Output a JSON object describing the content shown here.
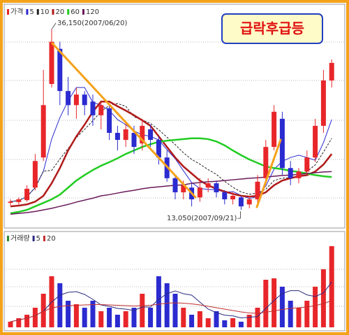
{
  "chart_data": [
    {
      "type": "candlestick",
      "title": "급락후급등",
      "price_label": "가격",
      "up_color": "#e8262a",
      "down_color": "#2b2bd0",
      "annotations": [
        "36,150(2007/06/20)",
        "13,050(2007/09/21)"
      ],
      "ylim": [
        11450,
        38550
      ],
      "open": [
        13950,
        14050,
        14300,
        15900,
        19750,
        29150,
        33650,
        28250,
        26450,
        27800,
        26900,
        25150,
        26050,
        22900,
        22000,
        22900,
        21550,
        23350,
        22000,
        19750,
        17100,
        15300,
        15900,
        14650,
        15900,
        16450,
        15300,
        14400,
        14650,
        13750,
        14400,
        17100,
        21100,
        24700,
        18400,
        17100,
        17950,
        19750,
        23800,
        29600
      ],
      "high": [
        14400,
        14650,
        16200,
        20200,
        30950,
        36150,
        34550,
        30050,
        28700,
        28250,
        27800,
        26900,
        26450,
        23800,
        24250,
        23800,
        24700,
        23950,
        22450,
        20650,
        17500,
        16800,
        16450,
        17100,
        17100,
        16800,
        15550,
        15300,
        14850,
        14850,
        17500,
        22000,
        26450,
        25600,
        19300,
        18400,
        20650,
        24700,
        30950,
        32300
      ],
      "low": [
        13600,
        13750,
        14100,
        15550,
        19300,
        28700,
        26450,
        25150,
        24700,
        25150,
        23800,
        23350,
        22000,
        20650,
        21100,
        20200,
        20650,
        21100,
        18850,
        16650,
        14400,
        14400,
        13500,
        14100,
        15300,
        14650,
        13750,
        13750,
        13050,
        13250,
        13950,
        16450,
        20650,
        17500,
        16200,
        16450,
        17500,
        19150,
        22900,
        28700
      ],
      "close": [
        14100,
        14400,
        15750,
        19300,
        26450,
        34550,
        28250,
        26450,
        27800,
        26450,
        25150,
        26450,
        22900,
        22000,
        23350,
        21100,
        23800,
        22000,
        19750,
        17100,
        15300,
        16200,
        14400,
        15900,
        16450,
        15300,
        14400,
        14850,
        13500,
        14400,
        16650,
        21100,
        25600,
        18400,
        17100,
        17950,
        19750,
        23800,
        29600,
        31850
      ],
      "series": [
        {
          "name": "5",
          "color": "#2b2bd0",
          "width": 1,
          "dashed": false,
          "values": [
            14100,
            14250,
            14750,
            15900,
            18000,
            22100,
            24850,
            27000,
            28700,
            28700,
            26800,
            26450,
            25750,
            24600,
            23950,
            23150,
            22650,
            22450,
            22000,
            20750,
            19600,
            18050,
            16550,
            15800,
            15650,
            15650,
            15300,
            15400,
            14900,
            14500,
            14750,
            16100,
            18250,
            19250,
            19750,
            20050,
            19750,
            19400,
            21650,
            24600
          ]
        },
        {
          "name": "10",
          "color": "#222222",
          "width": 1,
          "dashed": true,
          "values": [
            14100,
            14250,
            14750,
            15900,
            18000,
            18100,
            19550,
            20900,
            22300,
            23350,
            24450,
            25650,
            26400,
            26650,
            26300,
            24950,
            24550,
            24100,
            23300,
            22350,
            21400,
            20350,
            19500,
            18900,
            18200,
            17600,
            16700,
            15950,
            15350,
            15050,
            15200,
            15700,
            16800,
            17100,
            17150,
            17400,
            17950,
            18800,
            20450,
            22200
          ]
        },
        {
          "name": "20",
          "color": "#b01a1a",
          "width": 2.5,
          "dashed": false,
          "values": [
            13500,
            13600,
            13750,
            14100,
            14850,
            16450,
            18400,
            20650,
            22450,
            23950,
            25600,
            26900,
            26900,
            26300,
            25750,
            25150,
            24500,
            23800,
            22450,
            21100,
            19750,
            18600,
            17700,
            16800,
            16200,
            15750,
            15400,
            15100,
            14850,
            14750,
            14850,
            15300,
            16200,
            16800,
            17100,
            17350,
            17500,
            17950,
            18850,
            20200
          ]
        },
        {
          "name": "60",
          "color": "#22cc22",
          "width": 2.5,
          "dashed": false,
          "values": [
            12600,
            12800,
            13050,
            13500,
            13950,
            14400,
            15000,
            15900,
            16800,
            17500,
            18150,
            18700,
            19150,
            19650,
            20200,
            20650,
            21100,
            21450,
            21750,
            21900,
            22000,
            22100,
            22200,
            22200,
            22100,
            21800,
            21300,
            20650,
            20050,
            19500,
            19050,
            18600,
            18400,
            18250,
            18050,
            17900,
            17700,
            17500,
            17350,
            17250
          ]
        },
        {
          "name": "120",
          "color": "#6a1a5a",
          "width": 1.5,
          "dashed": false,
          "values": [
            12500,
            12600,
            12700,
            12850,
            13050,
            13250,
            13500,
            13750,
            14050,
            14300,
            14550,
            14850,
            15000,
            15200,
            15400,
            15550,
            15750,
            15900,
            16000,
            16100,
            16200,
            16250,
            16450,
            16550,
            16650,
            16700,
            16800,
            16900,
            17000,
            17100,
            17150,
            17250,
            17350,
            17450,
            17500,
            17600,
            17700,
            17800,
            17900,
            17950
          ]
        }
      ]
    },
    {
      "type": "bar",
      "label": "거래량",
      "ylim": [
        0,
        2400000
      ],
      "values": [
        160000,
        260000,
        360000,
        560000,
        960000,
        1460000,
        1260000,
        760000,
        660000,
        560000,
        760000,
        460000,
        560000,
        360000,
        460000,
        560000,
        960000,
        560000,
        1460000,
        1260000,
        960000,
        560000,
        360000,
        460000,
        260000,
        460000,
        200000,
        260000,
        160000,
        360000,
        560000,
        1360000,
        1400000,
        1160000,
        760000,
        560000,
        760000,
        1160000,
        1660000,
        2320000
      ],
      "series": [
        {
          "name": "5",
          "color": "#2b2b80",
          "values": [
            160000,
            210000,
            260000,
            335000,
            460000,
            720000,
            920000,
            1000000,
            1020000,
            940000,
            800000,
            640000,
            600000,
            540000,
            520000,
            480000,
            580000,
            580000,
            800000,
            960000,
            1040000,
            960000,
            920000,
            720000,
            520000,
            420000,
            348000,
            328000,
            268000,
            288000,
            308000,
            540000,
            768000,
            968000,
            1048000,
            1048000,
            928000,
            880000,
            980000,
            1292000
          ]
        },
        {
          "name": "20",
          "color": "#c03030",
          "values": [
            160000,
            210000,
            260000,
            335000,
            460000,
            550000,
            600000,
            620000,
            630000,
            640000,
            650000,
            650000,
            640000,
            630000,
            620000,
            610000,
            620000,
            630000,
            660000,
            690000,
            700000,
            690000,
            670000,
            640000,
            600000,
            560000,
            520000,
            480000,
            440000,
            410000,
            400000,
            430000,
            470000,
            510000,
            540000,
            560000,
            580000,
            620000,
            680000,
            760000
          ]
        }
      ]
    }
  ]
}
